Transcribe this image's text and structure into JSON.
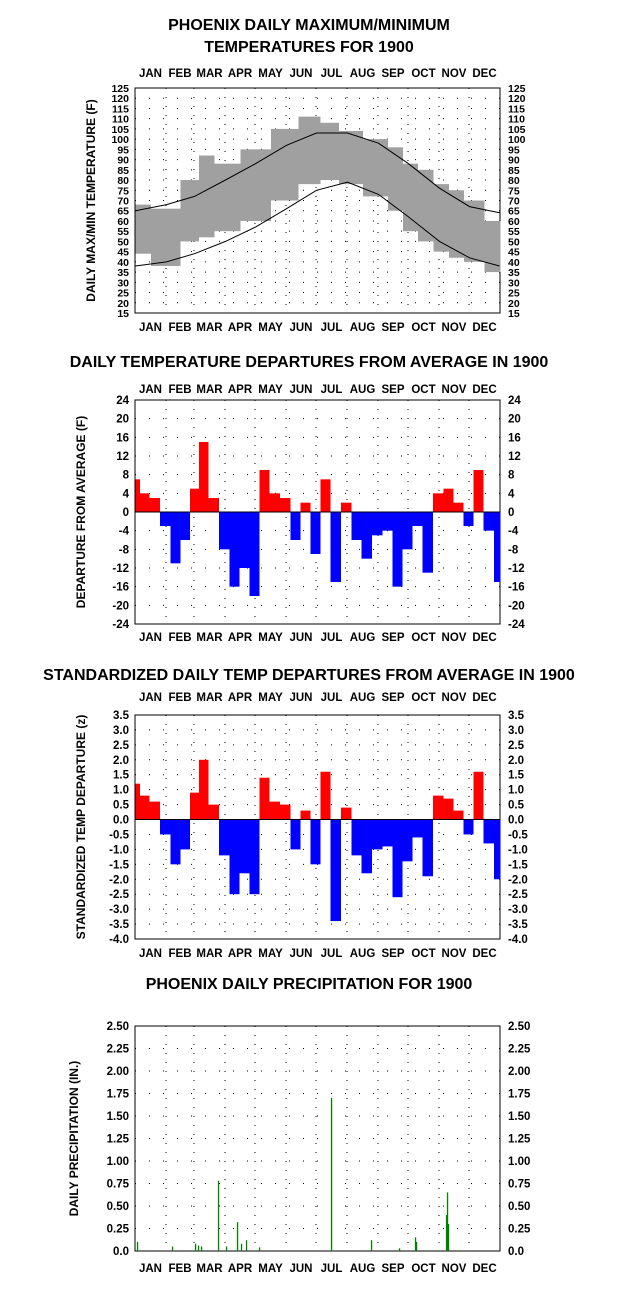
{
  "chart_data": [
    {
      "type": "line",
      "title": [
        "PHOENIX DAILY MAXIMUM/MINIMUM",
        "TEMPERATURES FOR 1900"
      ],
      "xlabel": "",
      "ylabel": "DAILY MAX/MIN TEMPERATURE (F)",
      "x_tick_labels": [
        "JAN",
        "FEB",
        "MAR",
        "APR",
        "MAY",
        "JUN",
        "JUL",
        "AUG",
        "SEP",
        "OCT",
        "NOV",
        "DEC"
      ],
      "y_ticks": [
        15,
        20,
        25,
        30,
        35,
        40,
        45,
        50,
        55,
        60,
        65,
        70,
        75,
        80,
        85,
        90,
        95,
        100,
        105,
        110,
        115,
        120,
        125
      ],
      "ylim": [
        15,
        125
      ],
      "grid": "dotted",
      "colors": {
        "daily_range": "#a0a0a0",
        "normals": "#000000"
      },
      "series": [
        {
          "style": "bar-range",
          "x": [
            "Jan 1",
            "Feb 1",
            "Mar 1",
            "Mar 10",
            "Apr 1",
            "May 1",
            "Jun 1",
            "Jun 25",
            "Jul 15",
            "Aug 1",
            "Sep 1",
            "Sep 20",
            "Oct 1",
            "Oct 20",
            "Nov 1",
            "Nov 20",
            "Dec 1",
            "Dec 31"
          ],
          "high": [
            68,
            66,
            80,
            92,
            88,
            95,
            105,
            111,
            108,
            104,
            100,
            96,
            88,
            85,
            78,
            75,
            70,
            60
          ],
          "low": [
            44,
            38,
            50,
            52,
            55,
            60,
            70,
            78,
            80,
            78,
            72,
            65,
            55,
            50,
            45,
            42,
            40,
            35
          ]
        },
        {
          "style": "line",
          "x": [
            "Jan 1",
            "Feb 1",
            "Mar 1",
            "Apr 1",
            "May 1",
            "Jun 1",
            "Jul 1",
            "Aug 1",
            "Sep 1",
            "Oct 1",
            "Nov 1",
            "Dec 1",
            "Dec 31"
          ],
          "values": [
            65,
            68,
            72,
            80,
            88,
            97,
            103,
            103,
            98,
            88,
            76,
            67,
            64
          ]
        },
        {
          "style": "line",
          "x": [
            "Jan 1",
            "Feb 1",
            "Mar 1",
            "Apr 1",
            "May 1",
            "Jun 1",
            "Jul 1",
            "Aug 1",
            "Sep 1",
            "Oct 1",
            "Nov 1",
            "Dec 1",
            "Dec 31"
          ],
          "values": [
            38,
            40,
            44,
            50,
            57,
            66,
            75,
            79,
            73,
            62,
            50,
            42,
            38
          ]
        }
      ]
    },
    {
      "type": "bar",
      "title": [
        "DAILY TEMPERATURE DEPARTURES FROM AVERAGE IN 1900"
      ],
      "ylabel": "DEPARTURE FROM AVERAGE (F)",
      "x_tick_labels": [
        "JAN",
        "FEB",
        "MAR",
        "APR",
        "MAY",
        "JUN",
        "JUL",
        "AUG",
        "SEP",
        "OCT",
        "NOV",
        "DEC"
      ],
      "y_ticks": [
        -24,
        -20,
        -16,
        -12,
        -8,
        -4,
        0,
        4,
        8,
        12,
        16,
        20,
        24
      ],
      "ylim": [
        -24,
        24
      ],
      "grid": "dotted",
      "colors": {
        "positive": "#ff0000",
        "negative": "#0000ff"
      },
      "x": [
        "Jan 1",
        "Jan 10",
        "Jan 20",
        "Jan 31",
        "Feb 10",
        "Feb 20",
        "Mar 1",
        "Mar 10",
        "Mar 20",
        "Mar 31",
        "Apr 10",
        "Apr 20",
        "Apr 30",
        "May 10",
        "May 20",
        "May 31",
        "Jun 10",
        "Jun 20",
        "Jun 30",
        "Jul 10",
        "Jul 20",
        "Jul 31",
        "Aug 10",
        "Aug 20",
        "Aug 31",
        "Sep 10",
        "Sep 20",
        "Sep 30",
        "Oct 10",
        "Oct 20",
        "Oct 31",
        "Nov 10",
        "Nov 20",
        "Nov 30",
        "Dec 10",
        "Dec 20",
        "Dec 31"
      ],
      "values": [
        7,
        4,
        3,
        -3,
        -11,
        -6,
        5,
        15,
        3,
        -8,
        -16,
        -12,
        -18,
        9,
        4,
        3,
        -6,
        2,
        -9,
        7,
        -15,
        2,
        -6,
        -10,
        -5,
        -4,
        -16,
        -8,
        -3,
        -13,
        4,
        5,
        2,
        -3,
        9,
        -4,
        -15
      ]
    },
    {
      "type": "bar",
      "title": [
        "STANDARDIZED DAILY TEMP DEPARTURES FROM AVERAGE IN 1900"
      ],
      "ylabel": "STANDARDIZED TEMP DEPARTURE (z)",
      "x_tick_labels": [
        "JAN",
        "FEB",
        "MAR",
        "APR",
        "MAY",
        "JUN",
        "JUL",
        "AUG",
        "SEP",
        "OCT",
        "NOV",
        "DEC"
      ],
      "y_ticks": [
        -4.0,
        -3.5,
        -3.0,
        -2.5,
        -2.0,
        -1.5,
        -1.0,
        -0.5,
        0.0,
        0.5,
        1.0,
        1.5,
        2.0,
        2.5,
        3.0,
        3.5
      ],
      "y_tick_labels": [
        "-4.0",
        "-3.5",
        "-3.0",
        "-2.5",
        "-2.0",
        "-1.5",
        "-1.0",
        "-0.5",
        "0.0",
        "0.5",
        "1.0",
        "1.5",
        "2.0",
        "2.5",
        "3.0",
        "3.5"
      ],
      "ylim": [
        -4.0,
        3.5
      ],
      "grid": "dotted",
      "colors": {
        "positive": "#ff0000",
        "negative": "#0000ff"
      },
      "x": [
        "Jan 1",
        "Jan 10",
        "Jan 20",
        "Jan 31",
        "Feb 10",
        "Feb 20",
        "Mar 1",
        "Mar 10",
        "Mar 20",
        "Mar 31",
        "Apr 10",
        "Apr 20",
        "Apr 30",
        "May 10",
        "May 20",
        "May 31",
        "Jun 10",
        "Jun 20",
        "Jun 30",
        "Jul 10",
        "Jul 20",
        "Jul 31",
        "Aug 10",
        "Aug 20",
        "Aug 31",
        "Sep 10",
        "Sep 20",
        "Sep 30",
        "Oct 10",
        "Oct 20",
        "Oct 31",
        "Nov 10",
        "Nov 20",
        "Nov 30",
        "Dec 10",
        "Dec 20",
        "Dec 31"
      ],
      "values": [
        1.2,
        0.8,
        0.6,
        -0.5,
        -1.5,
        -1.0,
        0.9,
        2.0,
        0.5,
        -1.2,
        -2.5,
        -1.8,
        -2.5,
        1.4,
        0.6,
        0.5,
        -1.0,
        0.3,
        -1.5,
        1.6,
        -3.4,
        0.4,
        -1.2,
        -1.8,
        -1.0,
        -0.9,
        -2.6,
        -1.4,
        -0.6,
        -1.9,
        0.8,
        0.7,
        0.3,
        -0.5,
        1.6,
        -0.8,
        -2.0
      ]
    },
    {
      "type": "bar",
      "title": [
        "PHOENIX DAILY PRECIPITATION FOR 1900"
      ],
      "ylabel": "DAILY PRECIPITATION (IN.)",
      "x_tick_labels": [
        "JAN",
        "FEB",
        "MAR",
        "APR",
        "MAY",
        "JUN",
        "JUL",
        "AUG",
        "SEP",
        "OCT",
        "NOV",
        "DEC"
      ],
      "y_ticks": [
        0.0,
        0.25,
        0.5,
        0.75,
        1.0,
        1.25,
        1.5,
        1.75,
        2.0,
        2.25,
        2.5
      ],
      "y_tick_labels": [
        "0.0",
        "0.25",
        "0.50",
        "0.75",
        "1.00",
        "1.25",
        "1.50",
        "1.75",
        "2.00",
        "2.25",
        "2.50"
      ],
      "ylim": [
        0,
        2.5
      ],
      "grid": "dotted",
      "colors": {
        "bars": "#008000"
      },
      "x": [
        "Jan 3",
        "Feb 7",
        "Mar 2",
        "Mar 5",
        "Mar 8",
        "Mar 25",
        "Apr 2",
        "Apr 13",
        "Apr 17",
        "Apr 22",
        "May 5",
        "Jul 16",
        "Aug 25",
        "Sep 22",
        "Oct 8",
        "Oct 9",
        "Nov 8",
        "Nov 9",
        "Nov 10"
      ],
      "values": [
        0.1,
        0.05,
        0.08,
        0.06,
        0.05,
        0.78,
        0.05,
        0.32,
        0.08,
        0.12,
        0.04,
        1.7,
        0.12,
        0.03,
        0.15,
        0.1,
        0.4,
        0.65,
        0.3
      ]
    }
  ]
}
